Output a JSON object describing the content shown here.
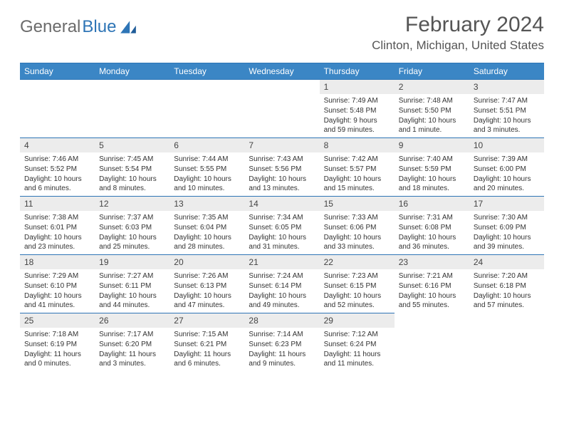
{
  "brand": {
    "part1": "General",
    "part2": "Blue"
  },
  "title": "February 2024",
  "location": "Clinton, Michigan, United States",
  "colors": {
    "header_bg": "#3b86c5",
    "header_border": "#2e75b6",
    "daynum_bg": "#ececec",
    "text": "#333333",
    "logo_gray": "#6b6b6b",
    "logo_blue": "#2e75b6"
  },
  "weekdays": [
    "Sunday",
    "Monday",
    "Tuesday",
    "Wednesday",
    "Thursday",
    "Friday",
    "Saturday"
  ],
  "weeks": [
    [
      null,
      null,
      null,
      null,
      {
        "n": "1",
        "sr": "7:49 AM",
        "ss": "5:48 PM",
        "dl": "9 hours and 59 minutes."
      },
      {
        "n": "2",
        "sr": "7:48 AM",
        "ss": "5:50 PM",
        "dl": "10 hours and 1 minute."
      },
      {
        "n": "3",
        "sr": "7:47 AM",
        "ss": "5:51 PM",
        "dl": "10 hours and 3 minutes."
      }
    ],
    [
      {
        "n": "4",
        "sr": "7:46 AM",
        "ss": "5:52 PM",
        "dl": "10 hours and 6 minutes."
      },
      {
        "n": "5",
        "sr": "7:45 AM",
        "ss": "5:54 PM",
        "dl": "10 hours and 8 minutes."
      },
      {
        "n": "6",
        "sr": "7:44 AM",
        "ss": "5:55 PM",
        "dl": "10 hours and 10 minutes."
      },
      {
        "n": "7",
        "sr": "7:43 AM",
        "ss": "5:56 PM",
        "dl": "10 hours and 13 minutes."
      },
      {
        "n": "8",
        "sr": "7:42 AM",
        "ss": "5:57 PM",
        "dl": "10 hours and 15 minutes."
      },
      {
        "n": "9",
        "sr": "7:40 AM",
        "ss": "5:59 PM",
        "dl": "10 hours and 18 minutes."
      },
      {
        "n": "10",
        "sr": "7:39 AM",
        "ss": "6:00 PM",
        "dl": "10 hours and 20 minutes."
      }
    ],
    [
      {
        "n": "11",
        "sr": "7:38 AM",
        "ss": "6:01 PM",
        "dl": "10 hours and 23 minutes."
      },
      {
        "n": "12",
        "sr": "7:37 AM",
        "ss": "6:03 PM",
        "dl": "10 hours and 25 minutes."
      },
      {
        "n": "13",
        "sr": "7:35 AM",
        "ss": "6:04 PM",
        "dl": "10 hours and 28 minutes."
      },
      {
        "n": "14",
        "sr": "7:34 AM",
        "ss": "6:05 PM",
        "dl": "10 hours and 31 minutes."
      },
      {
        "n": "15",
        "sr": "7:33 AM",
        "ss": "6:06 PM",
        "dl": "10 hours and 33 minutes."
      },
      {
        "n": "16",
        "sr": "7:31 AM",
        "ss": "6:08 PM",
        "dl": "10 hours and 36 minutes."
      },
      {
        "n": "17",
        "sr": "7:30 AM",
        "ss": "6:09 PM",
        "dl": "10 hours and 39 minutes."
      }
    ],
    [
      {
        "n": "18",
        "sr": "7:29 AM",
        "ss": "6:10 PM",
        "dl": "10 hours and 41 minutes."
      },
      {
        "n": "19",
        "sr": "7:27 AM",
        "ss": "6:11 PM",
        "dl": "10 hours and 44 minutes."
      },
      {
        "n": "20",
        "sr": "7:26 AM",
        "ss": "6:13 PM",
        "dl": "10 hours and 47 minutes."
      },
      {
        "n": "21",
        "sr": "7:24 AM",
        "ss": "6:14 PM",
        "dl": "10 hours and 49 minutes."
      },
      {
        "n": "22",
        "sr": "7:23 AM",
        "ss": "6:15 PM",
        "dl": "10 hours and 52 minutes."
      },
      {
        "n": "23",
        "sr": "7:21 AM",
        "ss": "6:16 PM",
        "dl": "10 hours and 55 minutes."
      },
      {
        "n": "24",
        "sr": "7:20 AM",
        "ss": "6:18 PM",
        "dl": "10 hours and 57 minutes."
      }
    ],
    [
      {
        "n": "25",
        "sr": "7:18 AM",
        "ss": "6:19 PM",
        "dl": "11 hours and 0 minutes."
      },
      {
        "n": "26",
        "sr": "7:17 AM",
        "ss": "6:20 PM",
        "dl": "11 hours and 3 minutes."
      },
      {
        "n": "27",
        "sr": "7:15 AM",
        "ss": "6:21 PM",
        "dl": "11 hours and 6 minutes."
      },
      {
        "n": "28",
        "sr": "7:14 AM",
        "ss": "6:23 PM",
        "dl": "11 hours and 9 minutes."
      },
      {
        "n": "29",
        "sr": "7:12 AM",
        "ss": "6:24 PM",
        "dl": "11 hours and 11 minutes."
      },
      null,
      null
    ]
  ],
  "labels": {
    "sunrise": "Sunrise:",
    "sunset": "Sunset:",
    "daylight": "Daylight:"
  }
}
